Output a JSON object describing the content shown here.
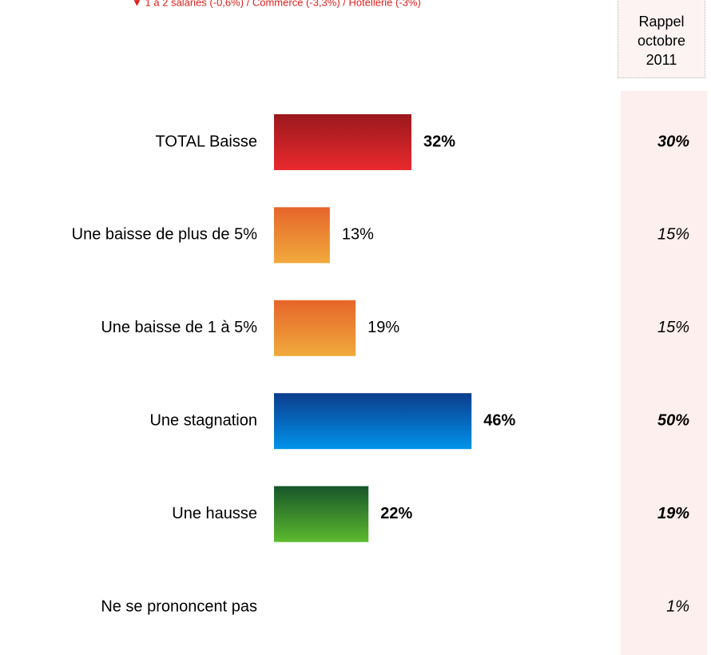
{
  "chart_data": {
    "type": "hbar",
    "annotation": "▼ 1 à 2 salariés (-0,6%) / Commerce (-3,3%) / Hôtellerie (-3%)",
    "categories": [
      "TOTAL Baisse",
      "Une baisse de plus de 5%",
      "Une baisse de 1 à 5%",
      "Une stagnation",
      "Une hausse",
      "Ne se prononcent pas"
    ],
    "values": [
      32,
      13,
      19,
      46,
      22,
      null
    ],
    "value_labels": [
      "32%",
      "13%",
      "19%",
      "46%",
      "22%",
      null
    ],
    "bold": [
      true,
      false,
      false,
      true,
      true,
      false
    ],
    "colors": [
      [
        "#9a181d",
        "#ea2a2e"
      ],
      [
        "#e6652a",
        "#f0aa3c"
      ],
      [
        "#e6652a",
        "#f0aa3c"
      ],
      [
        "#0c3c8c",
        "#0093ea"
      ],
      [
        "#17552a",
        "#5cba2e"
      ],
      null
    ],
    "comparison": {
      "name": "Rappel octobre 2011",
      "values": [
        30,
        15,
        15,
        50,
        19,
        1
      ],
      "value_labels": [
        "30%",
        "15%",
        "15%",
        "50%",
        "19%",
        "1%"
      ]
    }
  }
}
